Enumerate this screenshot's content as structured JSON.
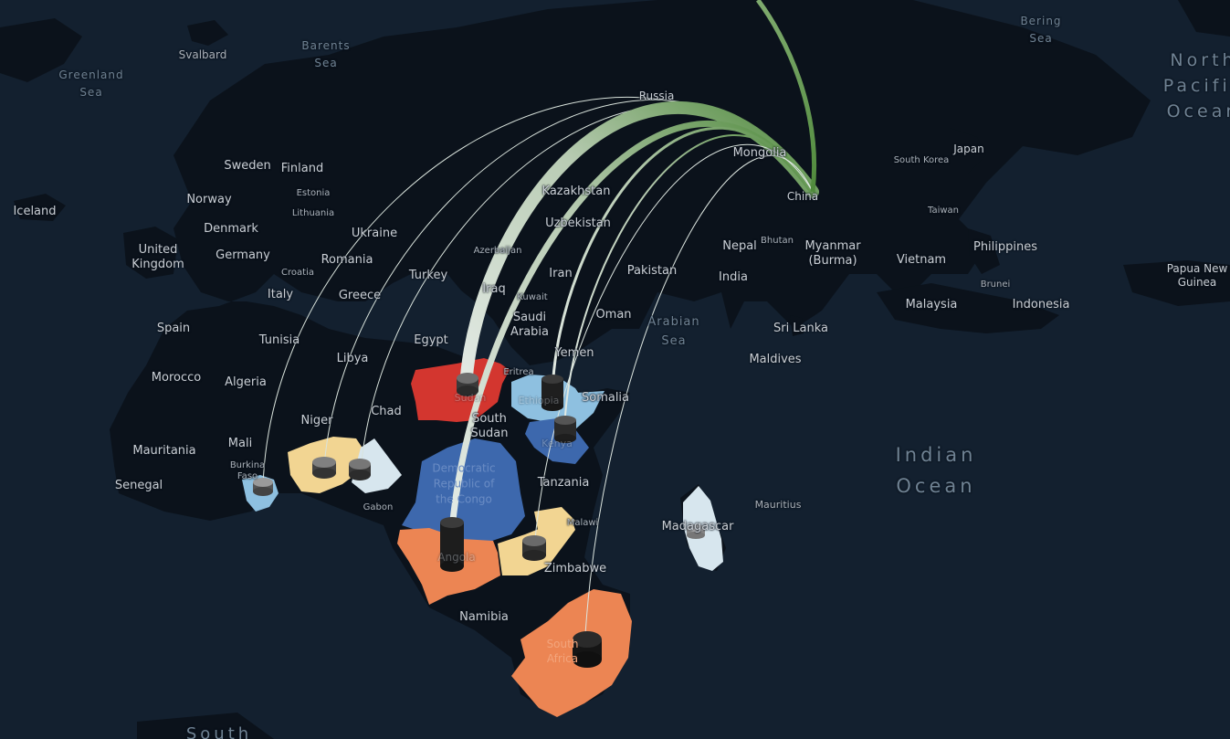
{
  "map": {
    "colors": {
      "ocean": "#13202f",
      "land": "#0b121b",
      "high": "#d3362f",
      "upper": "#ec8553",
      "mid": "#f2d592",
      "lowmid": "#8ec0e0",
      "low": "#d7e6ee",
      "deep": "#3d68ad",
      "arc_start": "#e4ebe6",
      "arc_end": "#4f8a3b"
    },
    "labels": {
      "greenland_sea": "Greenland\nSea",
      "svalbard": "Svalbard",
      "barents_sea": "Barents\nSea",
      "bering_sea": "Bering\nSea",
      "north_pacific": "North\nPacific\nOcean",
      "russia": "Russia",
      "mongolia": "Mongolia",
      "japan": "Japan",
      "south_korea": "South Korea",
      "china": "China",
      "taiwan": "Taiwan",
      "iceland": "Iceland",
      "sweden": "Sweden",
      "finland": "Finland",
      "norway": "Norway",
      "estonia": "Estonia",
      "lithuania": "Lithuania",
      "denmark": "Denmark",
      "united_kingdom": "United\nKingdom",
      "germany": "Germany",
      "ukraine": "Ukraine",
      "romania": "Romania",
      "croatia": "Croatia",
      "italy": "Italy",
      "greece": "Greece",
      "turkey": "Turkey",
      "kazakhstan": "Kazakhstan",
      "uzbekistan": "Uzbekistan",
      "azerbaijan": "Azerbaijan",
      "iraq": "Iraq",
      "kuwait": "Kuwait",
      "iran": "Iran",
      "pakistan": "Pakistan",
      "nepal": "Nepal",
      "bhutan": "Bhutan",
      "myanmar": "Myanmar\n(Burma)",
      "vietnam": "Vietnam",
      "philippines": "Philippines",
      "india": "India",
      "spain": "Spain",
      "tunisia": "Tunisia",
      "libya": "Libya",
      "egypt": "Egypt",
      "saudi_arabia": "Saudi\nArabia",
      "oman": "Oman",
      "yemen": "Yemen",
      "arabian_sea": "Arabian\nSea",
      "sri_lanka": "Sri Lanka",
      "malaysia": "Malaysia",
      "brunei": "Brunei",
      "indonesia": "Indonesia",
      "papua_new_guinea": "Papua New\nGuinea",
      "maldives": "Maldives",
      "morocco": "Morocco",
      "algeria": "Algeria",
      "eritrea": "Eritrea",
      "somalia": "Somalia",
      "chad": "Chad",
      "niger": "Niger",
      "mali": "Mali",
      "mauritania": "Mauritania",
      "burkina_faso": "Burkina\nFaso",
      "senegal": "Senegal",
      "south_sudan": "South\nSudan",
      "gabon": "Gabon",
      "drc": "Democratic\nRepublic of\nthe Congo",
      "tanzania": "Tanzania",
      "malawi": "Malawi",
      "madagascar": "Madagascar",
      "mauritius": "Mauritius",
      "zimbabwe": "Zimbabwe",
      "namibia": "Namibia",
      "south_africa": "South\nAfrica",
      "indian_ocean": "Indian\nOcean",
      "sudan": "Sudan",
      "ethiopia": "Ethiopia",
      "kenya": "Kenya",
      "angola": "Angola",
      "south_atlantic": "South"
    }
  }
}
